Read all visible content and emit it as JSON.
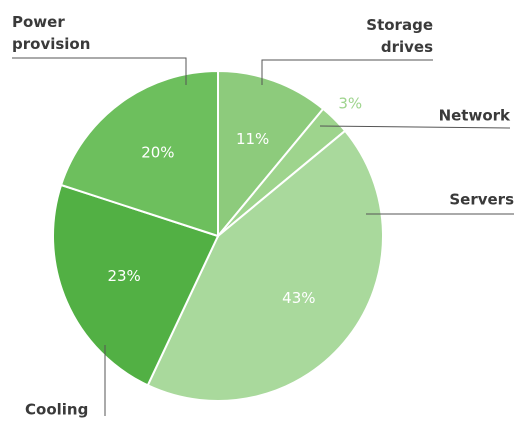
{
  "chart_data": {
    "type": "pie",
    "categories": [
      "Storage drives",
      "Network",
      "Servers",
      "Cooling",
      "Power provision"
    ],
    "values": [
      11,
      3,
      43,
      23,
      20
    ],
    "value_labels": [
      "11%",
      "3%",
      "43%",
      "23%",
      "20%"
    ],
    "colors": [
      "#8dcb7c",
      "#9ed48d",
      "#a9d99c",
      "#52b044",
      "#6dbf5d"
    ]
  }
}
